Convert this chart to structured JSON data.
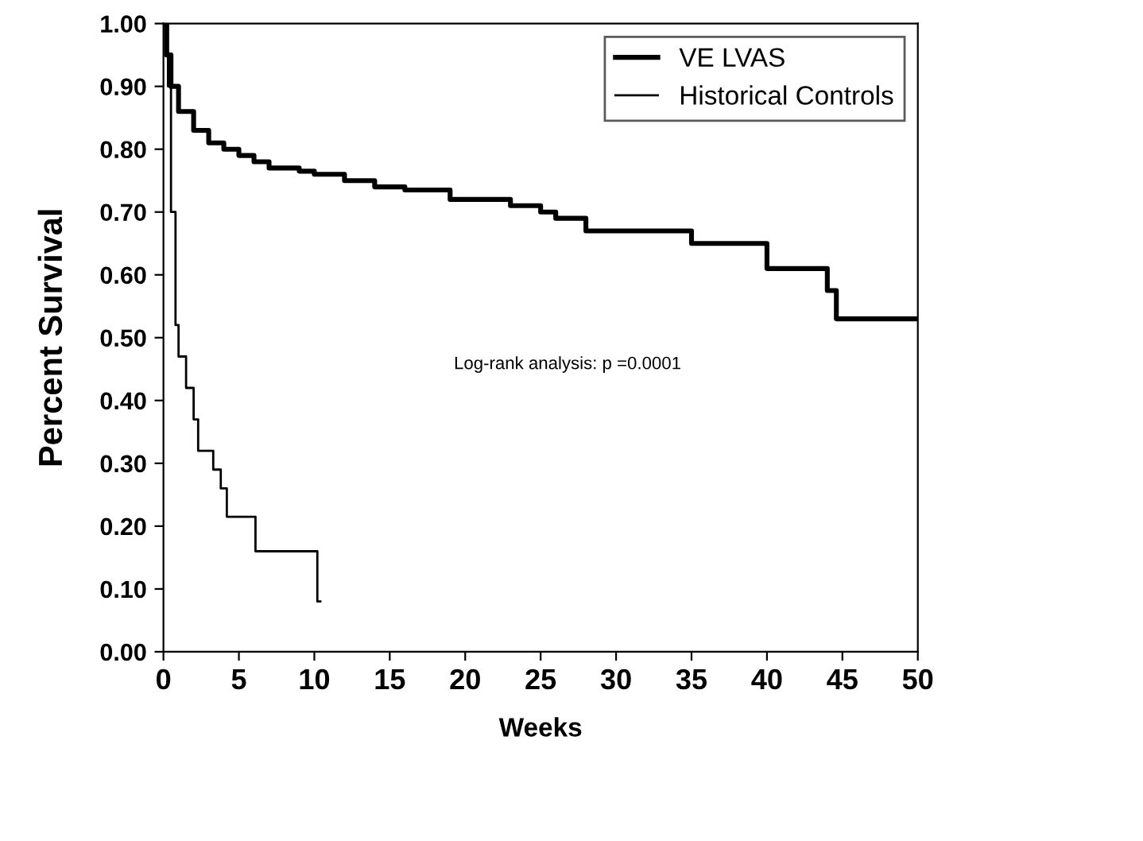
{
  "chart_data": {
    "type": "step",
    "xlabel": "Weeks",
    "ylabel": "Percent Survival",
    "xlim": [
      0,
      50
    ],
    "ylim": [
      0,
      1
    ],
    "xticks": [
      0,
      5,
      10,
      15,
      20,
      25,
      30,
      35,
      40,
      45,
      50
    ],
    "yticks": [
      {
        "value": 0,
        "label": "0.00"
      },
      {
        "value": 0.1,
        "label": "0.10"
      },
      {
        "value": 0.2,
        "label": "0.20"
      },
      {
        "value": 0.3,
        "label": "0.30"
      },
      {
        "value": 0.4,
        "label": "0.40"
      },
      {
        "value": 0.5,
        "label": "0.50"
      },
      {
        "value": 0.6,
        "label": "0.60"
      },
      {
        "value": 0.7,
        "label": "0.70"
      },
      {
        "value": 0.8,
        "label": "0.80"
      },
      {
        "value": 0.9,
        "label": "0.90"
      },
      {
        "value": 1,
        "label": "1.00"
      }
    ],
    "grid": false,
    "legend": "top right",
    "line_style": "solid",
    "marker": "none",
    "series": [
      {
        "name": "VE LVAS",
        "color": "#000000",
        "x": [
          0,
          0.2,
          0.5,
          1,
          2,
          3,
          4,
          5,
          6,
          7,
          9,
          10,
          12,
          14,
          16,
          19,
          23,
          25,
          26,
          28,
          35,
          40,
          44,
          44.6,
          50
        ],
        "values": [
          1.0,
          0.95,
          0.9,
          0.86,
          0.83,
          0.81,
          0.8,
          0.79,
          0.78,
          0.77,
          0.765,
          0.76,
          0.75,
          0.74,
          0.735,
          0.72,
          0.71,
          0.7,
          0.69,
          0.67,
          0.65,
          0.61,
          0.575,
          0.53,
          0.53
        ]
      },
      {
        "name": "Historical Controls",
        "color": "#000000",
        "x": [
          0,
          0.3,
          0.5,
          0.8,
          1,
          1.5,
          2,
          2.3,
          3.3,
          3.8,
          4.2,
          6.1,
          10.2,
          10.4
        ],
        "values": [
          1.0,
          0.9,
          0.7,
          0.52,
          0.47,
          0.42,
          0.37,
          0.32,
          0.29,
          0.26,
          0.215,
          0.16,
          0.08,
          0.08
        ]
      }
    ],
    "annotations": [
      "Log-rank analysis: p =0.0001"
    ]
  }
}
